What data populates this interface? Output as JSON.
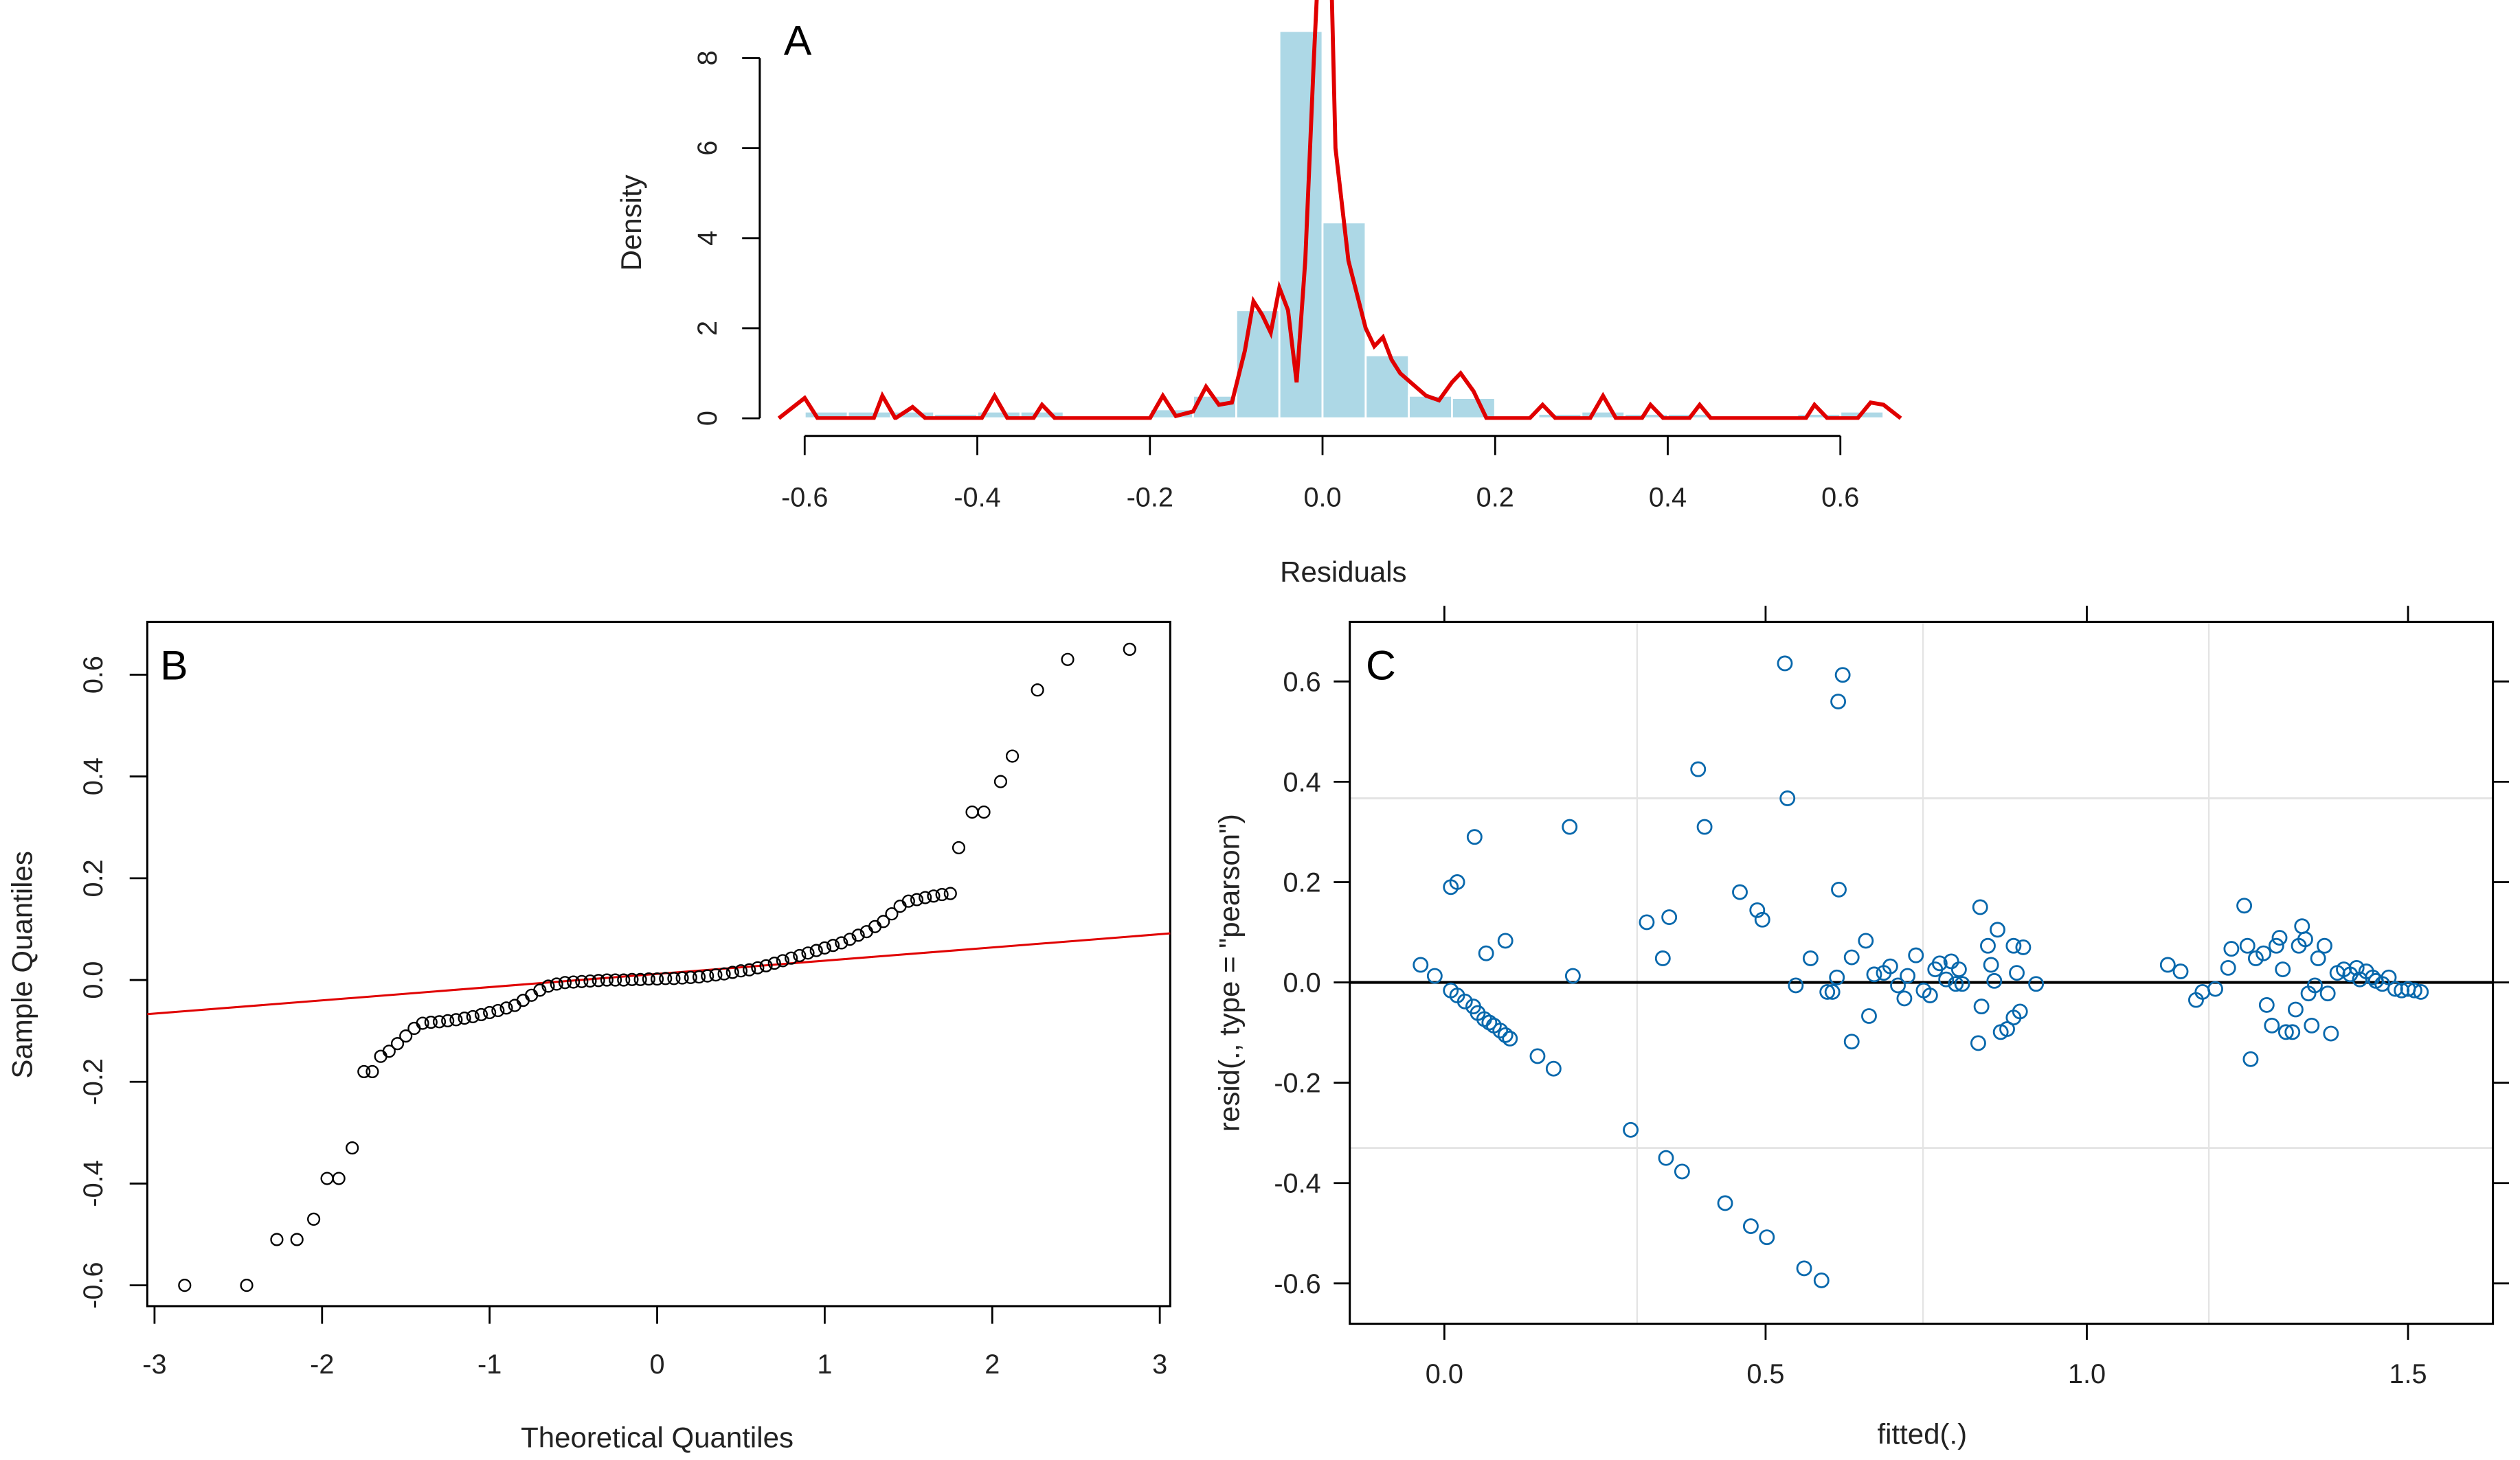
{
  "chart_data": [
    {
      "panel_label": "A",
      "type": "bar",
      "xlabel": "Residuals",
      "ylabel": "Density",
      "xlim": [
        -0.63,
        0.67
      ],
      "ylim": [
        0,
        8
      ],
      "xticks": [
        "-0.6",
        "-0.4",
        "-0.2",
        "0.0",
        "0.2",
        "0.4",
        "0.6"
      ],
      "yticks": [
        "0",
        "2",
        "4",
        "6",
        "8"
      ],
      "bar_color": "#add8e6",
      "line_color": "#e00000",
      "histogram": {
        "bin_width": 0.05,
        "bins": [
          [
            -0.6,
            0.15
          ],
          [
            -0.55,
            0.15
          ],
          [
            -0.5,
            0.15
          ],
          [
            -0.45,
            0.1
          ],
          [
            -0.4,
            0.15
          ],
          [
            -0.35,
            0.15
          ],
          [
            -0.3,
            0
          ],
          [
            -0.25,
            0
          ],
          [
            -0.2,
            0.2
          ],
          [
            -0.15,
            0.5
          ],
          [
            -0.1,
            2.4
          ],
          [
            -0.05,
            8.6
          ],
          [
            0,
            4.35
          ],
          [
            0.05,
            1.4
          ],
          [
            0.1,
            0.5
          ],
          [
            0.15,
            0.45
          ],
          [
            0.2,
            0
          ],
          [
            0.25,
            0.1
          ],
          [
            0.3,
            0.15
          ],
          [
            0.35,
            0.1
          ],
          [
            0.4,
            0.1
          ],
          [
            0.45,
            0
          ],
          [
            0.5,
            0
          ],
          [
            0.55,
            0.1
          ],
          [
            0.6,
            0.15
          ]
        ]
      },
      "density_curve": [
        [
          -0.63,
          0
        ],
        [
          -0.6,
          0.45
        ],
        [
          -0.585,
          0
        ],
        [
          -0.52,
          0
        ],
        [
          -0.51,
          0.5
        ],
        [
          -0.495,
          0
        ],
        [
          -0.475,
          0.25
        ],
        [
          -0.46,
          0
        ],
        [
          -0.395,
          0
        ],
        [
          -0.38,
          0.5
        ],
        [
          -0.365,
          0
        ],
        [
          -0.335,
          0
        ],
        [
          -0.325,
          0.3
        ],
        [
          -0.31,
          0
        ],
        [
          -0.2,
          0
        ],
        [
          -0.185,
          0.5
        ],
        [
          -0.17,
          0.05
        ],
        [
          -0.15,
          0.15
        ],
        [
          -0.135,
          0.7
        ],
        [
          -0.12,
          0.3
        ],
        [
          -0.105,
          0.35
        ],
        [
          -0.09,
          1.5
        ],
        [
          -0.08,
          2.6
        ],
        [
          -0.07,
          2.3
        ],
        [
          -0.06,
          1.9
        ],
        [
          -0.05,
          2.9
        ],
        [
          -0.04,
          2.4
        ],
        [
          -0.03,
          0.8
        ],
        [
          -0.02,
          3.5
        ],
        [
          -0.01,
          8
        ],
        [
          -0.005,
          10
        ],
        [
          0.01,
          10
        ],
        [
          0.015,
          6
        ],
        [
          0.03,
          3.5
        ],
        [
          0.05,
          2.0
        ],
        [
          0.06,
          1.6
        ],
        [
          0.07,
          1.8
        ],
        [
          0.08,
          1.3
        ],
        [
          0.09,
          1.0
        ],
        [
          0.12,
          0.5
        ],
        [
          0.135,
          0.4
        ],
        [
          0.15,
          0.8
        ],
        [
          0.16,
          1.0
        ],
        [
          0.175,
          0.6
        ],
        [
          0.19,
          0
        ],
        [
          0.24,
          0
        ],
        [
          0.255,
          0.3
        ],
        [
          0.27,
          0
        ],
        [
          0.31,
          0
        ],
        [
          0.325,
          0.5
        ],
        [
          0.34,
          0
        ],
        [
          0.37,
          0
        ],
        [
          0.38,
          0.3
        ],
        [
          0.395,
          0
        ],
        [
          0.425,
          0
        ],
        [
          0.437,
          0.3
        ],
        [
          0.45,
          0
        ],
        [
          0.56,
          0
        ],
        [
          0.57,
          0.3
        ],
        [
          0.585,
          0
        ],
        [
          0.62,
          0
        ],
        [
          0.635,
          0.35
        ],
        [
          0.65,
          0.3
        ],
        [
          0.67,
          0
        ]
      ]
    },
    {
      "panel_label": "B",
      "type": "scatter",
      "xlabel": "Theoretical Quantiles",
      "ylabel": "Sample Quantiles",
      "xlim": [
        -3.05,
        3.07
      ],
      "ylim": [
        -0.64,
        0.7
      ],
      "xticks": [
        "-3",
        "-2",
        "-1",
        "0",
        "1",
        "2",
        "3"
      ],
      "yticks": [
        "-0.6",
        "-0.4",
        "-0.2",
        "0.0",
        "0.2",
        "0.4",
        "0.6"
      ],
      "point_color": "#000000",
      "line_color": "#e00000",
      "qqline": {
        "intercept": 0.012,
        "slope": 0.026
      },
      "points": [
        [
          -2.82,
          -0.6
        ],
        [
          -2.45,
          -0.6
        ],
        [
          -2.27,
          -0.51
        ],
        [
          -2.15,
          -0.51
        ],
        [
          -2.05,
          -0.47
        ],
        [
          -1.97,
          -0.39
        ],
        [
          -1.9,
          -0.39
        ],
        [
          -1.82,
          -0.33
        ],
        [
          -1.75,
          -0.18
        ],
        [
          -1.7,
          -0.18
        ],
        [
          -1.65,
          -0.15
        ],
        [
          -1.6,
          -0.14
        ],
        [
          -1.55,
          -0.125
        ],
        [
          -1.5,
          -0.11
        ],
        [
          -1.45,
          -0.095
        ],
        [
          -1.4,
          -0.085
        ],
        [
          -1.35,
          -0.083
        ],
        [
          -1.3,
          -0.082
        ],
        [
          -1.25,
          -0.08
        ],
        [
          -1.2,
          -0.078
        ],
        [
          -1.15,
          -0.075
        ],
        [
          -1.1,
          -0.072
        ],
        [
          -1.05,
          -0.068
        ],
        [
          -1.0,
          -0.064
        ],
        [
          -0.95,
          -0.06
        ],
        [
          -0.9,
          -0.055
        ],
        [
          -0.85,
          -0.05
        ],
        [
          -0.8,
          -0.04
        ],
        [
          -0.75,
          -0.03
        ],
        [
          -0.7,
          -0.02
        ],
        [
          -0.65,
          -0.012
        ],
        [
          -0.6,
          -0.008
        ],
        [
          -0.55,
          -0.005
        ],
        [
          -0.5,
          -0.004
        ],
        [
          -0.45,
          -0.003
        ],
        [
          -0.4,
          -0.002
        ],
        [
          -0.35,
          -0.001
        ],
        [
          -0.3,
          0
        ],
        [
          -0.25,
          0
        ],
        [
          -0.2,
          0
        ],
        [
          -0.15,
          0.001
        ],
        [
          -0.1,
          0.001
        ],
        [
          -0.05,
          0.002
        ],
        [
          0,
          0.002
        ],
        [
          0.05,
          0.003
        ],
        [
          0.1,
          0.003
        ],
        [
          0.15,
          0.004
        ],
        [
          0.2,
          0.005
        ],
        [
          0.25,
          0.006
        ],
        [
          0.3,
          0.008
        ],
        [
          0.35,
          0.01
        ],
        [
          0.4,
          0.012
        ],
        [
          0.45,
          0.015
        ],
        [
          0.5,
          0.018
        ],
        [
          0.55,
          0.02
        ],
        [
          0.6,
          0.024
        ],
        [
          0.65,
          0.028
        ],
        [
          0.7,
          0.033
        ],
        [
          0.75,
          0.038
        ],
        [
          0.8,
          0.043
        ],
        [
          0.85,
          0.048
        ],
        [
          0.9,
          0.053
        ],
        [
          0.95,
          0.058
        ],
        [
          1.0,
          0.063
        ],
        [
          1.05,
          0.068
        ],
        [
          1.1,
          0.073
        ],
        [
          1.15,
          0.08
        ],
        [
          1.2,
          0.088
        ],
        [
          1.25,
          0.095
        ],
        [
          1.3,
          0.105
        ],
        [
          1.35,
          0.115
        ],
        [
          1.4,
          0.13
        ],
        [
          1.45,
          0.145
        ],
        [
          1.5,
          0.155
        ],
        [
          1.55,
          0.158
        ],
        [
          1.6,
          0.162
        ],
        [
          1.65,
          0.165
        ],
        [
          1.7,
          0.168
        ],
        [
          1.75,
          0.17
        ],
        [
          1.8,
          0.26
        ],
        [
          1.88,
          0.33
        ],
        [
          1.95,
          0.33
        ],
        [
          2.05,
          0.39
        ],
        [
          2.12,
          0.44
        ],
        [
          2.27,
          0.57
        ],
        [
          2.45,
          0.63
        ],
        [
          2.82,
          0.65
        ]
      ]
    },
    {
      "panel_label": "C",
      "type": "scatter",
      "xlabel": "fitted(.)",
      "ylabel": "resid(., type = \"pearson\")",
      "xlim": [
        -0.15,
        1.63
      ],
      "ylim": [
        -0.67,
        0.72
      ],
      "xticks": [
        "0.0",
        "0.5",
        "1.0",
        "1.5"
      ],
      "yticks": [
        "-0.6",
        "-0.4",
        "-0.2",
        "0.0",
        "0.2",
        "0.4",
        "0.6"
      ],
      "point_color": "#0868ac",
      "reference_line": 0,
      "grid_x": [
        0.3,
        0.745,
        1.19
      ],
      "grid_y": [
        0.367,
        -0.33
      ],
      "points": [
        [
          -0.037,
          0.035
        ],
        [
          -0.015,
          0.013
        ],
        [
          0.01,
          -0.016
        ],
        [
          0.02,
          -0.026
        ],
        [
          0.032,
          -0.038
        ],
        [
          0.045,
          -0.048
        ],
        [
          0.052,
          -0.061
        ],
        [
          0.062,
          -0.073
        ],
        [
          0.07,
          -0.08
        ],
        [
          0.077,
          -0.086
        ],
        [
          0.087,
          -0.096
        ],
        [
          0.095,
          -0.105
        ],
        [
          0.102,
          -0.112
        ],
        [
          0.01,
          0.19
        ],
        [
          0.02,
          0.2
        ],
        [
          0.047,
          0.29
        ],
        [
          0.065,
          0.058
        ],
        [
          0.095,
          0.083
        ],
        [
          0.145,
          -0.147
        ],
        [
          0.17,
          -0.172
        ],
        [
          0.195,
          0.31
        ],
        [
          0.2,
          0.013
        ],
        [
          0.29,
          -0.294
        ],
        [
          0.315,
          0.12
        ],
        [
          0.35,
          0.13
        ],
        [
          0.34,
          0.048
        ],
        [
          0.345,
          -0.35
        ],
        [
          0.37,
          -0.377
        ],
        [
          0.395,
          0.425
        ],
        [
          0.405,
          0.31
        ],
        [
          0.437,
          -0.44
        ],
        [
          0.46,
          0.18
        ],
        [
          0.487,
          0.144
        ],
        [
          0.495,
          0.125
        ],
        [
          0.477,
          -0.486
        ],
        [
          0.502,
          -0.508
        ],
        [
          0.53,
          0.636
        ],
        [
          0.534,
          0.367
        ],
        [
          0.547,
          -0.006
        ],
        [
          0.57,
          0.048
        ],
        [
          0.56,
          -0.57
        ],
        [
          0.587,
          -0.594
        ],
        [
          0.596,
          -0.019
        ],
        [
          0.604,
          -0.019
        ],
        [
          0.611,
          0.01
        ],
        [
          0.614,
          0.185
        ],
        [
          0.62,
          0.613
        ],
        [
          0.613,
          0.56
        ],
        [
          0.634,
          -0.118
        ],
        [
          0.634,
          0.05
        ],
        [
          0.656,
          0.083
        ],
        [
          0.661,
          -0.067
        ],
        [
          0.669,
          0.016
        ],
        [
          0.684,
          0.019
        ],
        [
          0.694,
          0.032
        ],
        [
          0.706,
          -0.006
        ],
        [
          0.716,
          -0.032
        ],
        [
          0.721,
          0.013
        ],
        [
          0.734,
          0.054
        ],
        [
          0.746,
          -0.016
        ],
        [
          0.756,
          -0.026
        ],
        [
          0.764,
          0.026
        ],
        [
          0.771,
          0.038
        ],
        [
          0.781,
          0.006
        ],
        [
          0.789,
          0.042
        ],
        [
          0.796,
          -0.003
        ],
        [
          0.801,
          0.026
        ],
        [
          0.806,
          -0.003
        ],
        [
          0.834,
          0.15
        ],
        [
          0.831,
          -0.121
        ],
        [
          0.836,
          -0.048
        ],
        [
          0.846,
          0.073
        ],
        [
          0.851,
          0.035
        ],
        [
          0.861,
          0.105
        ],
        [
          0.856,
          0.003
        ],
        [
          0.866,
          -0.099
        ],
        [
          0.876,
          -0.093
        ],
        [
          0.886,
          0.073
        ],
        [
          0.891,
          0.019
        ],
        [
          0.886,
          -0.07
        ],
        [
          0.896,
          -0.058
        ],
        [
          0.901,
          0.07
        ],
        [
          0.921,
          -0.003
        ],
        [
          1.126,
          0.035
        ],
        [
          1.146,
          0.022
        ],
        [
          1.17,
          -0.035
        ],
        [
          1.18,
          -0.019
        ],
        [
          1.2,
          -0.013
        ],
        [
          1.22,
          0.029
        ],
        [
          1.225,
          0.067
        ],
        [
          1.245,
          0.153
        ],
        [
          1.255,
          -0.153
        ],
        [
          1.25,
          0.073
        ],
        [
          1.263,
          0.048
        ],
        [
          1.275,
          0.058
        ],
        [
          1.28,
          -0.045
        ],
        [
          1.288,
          -0.086
        ],
        [
          1.295,
          0.073
        ],
        [
          1.3,
          0.089
        ],
        [
          1.305,
          0.026
        ],
        [
          1.31,
          -0.099
        ],
        [
          1.32,
          -0.099
        ],
        [
          1.325,
          -0.054
        ],
        [
          1.33,
          0.073
        ],
        [
          1.335,
          0.112
        ],
        [
          1.34,
          0.086
        ],
        [
          1.345,
          -0.022
        ],
        [
          1.35,
          -0.086
        ],
        [
          1.355,
          -0.006
        ],
        [
          1.36,
          0.048
        ],
        [
          1.37,
          0.073
        ],
        [
          1.375,
          -0.022
        ],
        [
          1.38,
          -0.102
        ],
        [
          1.39,
          0.019
        ],
        [
          1.4,
          0.026
        ],
        [
          1.41,
          0.016
        ],
        [
          1.42,
          0.029
        ],
        [
          1.425,
          0.006
        ],
        [
          1.435,
          0.022
        ],
        [
          1.445,
          0.01
        ],
        [
          1.45,
          0.003
        ],
        [
          1.46,
          -0.003
        ],
        [
          1.47,
          0.01
        ],
        [
          1.48,
          -0.013
        ],
        [
          1.49,
          -0.016
        ],
        [
          1.5,
          -0.013
        ],
        [
          1.51,
          -0.016
        ],
        [
          1.52,
          -0.019
        ]
      ]
    }
  ]
}
